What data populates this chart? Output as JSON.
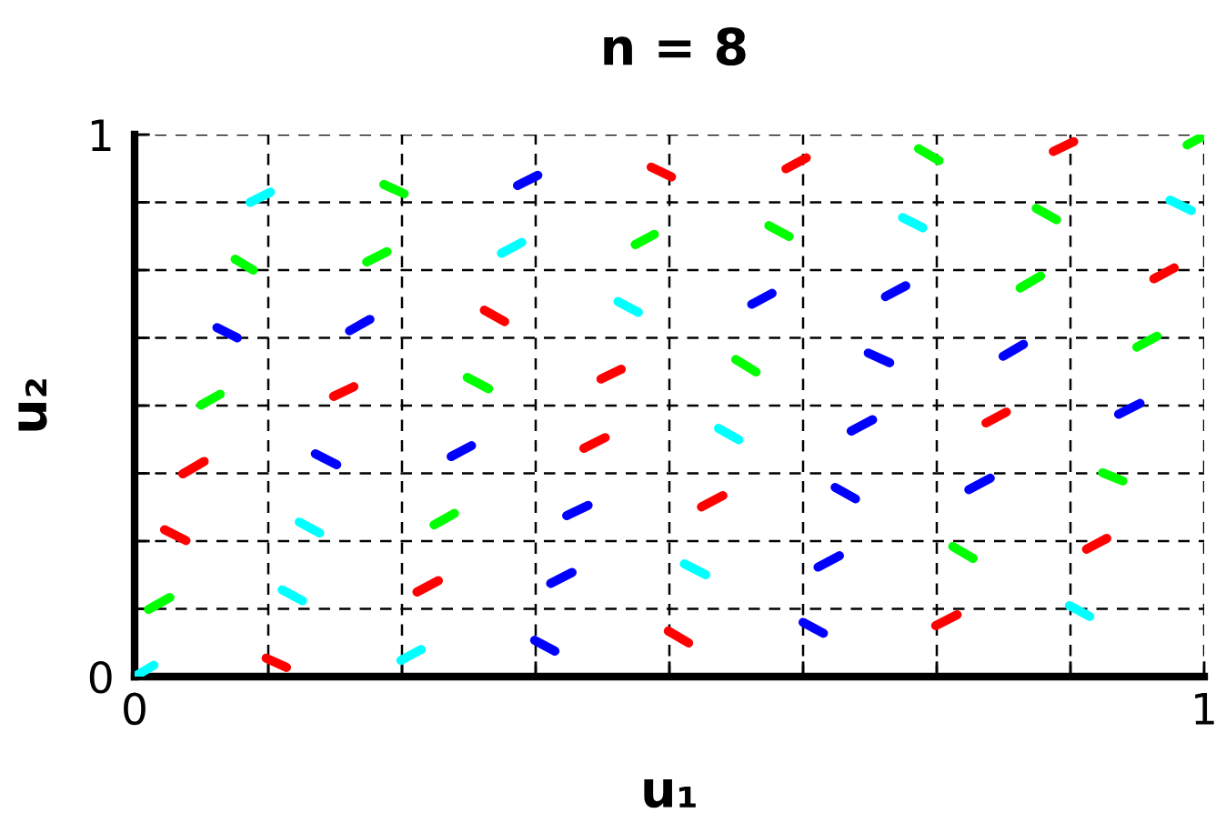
{
  "chart_data": {
    "type": "line",
    "title": "n = 8",
    "xlabel": "u₁",
    "ylabel": "u₂",
    "xlim": [
      0,
      1
    ],
    "ylim": [
      0,
      1
    ],
    "xticks": [
      0,
      {
        "value": 0.125,
        "label": null
      },
      {
        "value": 0.25,
        "label": null
      },
      {
        "value": 0.375,
        "label": null
      },
      {
        "value": 0.5,
        "label": null
      },
      {
        "value": 0.625,
        "label": null
      },
      {
        "value": 0.75,
        "label": null
      },
      {
        "value": 0.875,
        "label": null
      },
      1
    ],
    "yticks": [
      0,
      {
        "value": 0.125,
        "label": null
      },
      {
        "value": 0.25,
        "label": null
      },
      {
        "value": 0.375,
        "label": null
      },
      {
        "value": 0.5,
        "label": null
      },
      {
        "value": 0.625,
        "label": null
      },
      {
        "value": 0.75,
        "label": null
      },
      {
        "value": 0.875,
        "label": null
      },
      1
    ],
    "grid": true,
    "series": [
      {
        "color": "#ff0000",
        "x": [
          0.483,
          0.502,
          null,
          0.609,
          0.628,
          null,
          0.859,
          0.878,
          null,
          0.327,
          0.346,
          null,
          0.953,
          0.972,
          null,
          0.186,
          0.205,
          null,
          0.436,
          0.455,
          null,
          0.045,
          0.065,
          null,
          0.42,
          0.44,
          null,
          0.796,
          0.815,
          null,
          0.028,
          0.048,
          null,
          0.53,
          0.55,
          null,
          0.264,
          0.284,
          null,
          0.89,
          0.909,
          null,
          0.123,
          0.142,
          null,
          0.499,
          0.518,
          null,
          0.749,
          0.769
        ],
        "values": [
          0.94,
          0.922,
          null,
          0.937,
          0.957,
          null,
          0.969,
          0.987,
          null,
          0.676,
          0.655,
          null,
          0.734,
          0.754,
          null,
          0.517,
          0.535,
          null,
          0.549,
          0.567,
          null,
          0.374,
          0.397,
          null,
          0.421,
          0.441,
          null,
          0.468,
          0.488,
          null,
          0.271,
          0.251,
          null,
          0.313,
          0.334,
          null,
          0.156,
          0.177,
          null,
          0.235,
          0.255,
          null,
          0.034,
          0.017,
          null,
          0.084,
          0.062,
          null,
          0.094,
          0.114
        ]
      },
      {
        "color": "#00ff00",
        "x": [
          0.233,
          0.252,
          null,
          0.733,
          0.752,
          null,
          0.984,
          1.0,
          null,
          0.094,
          0.111,
          null,
          0.217,
          0.236,
          null,
          0.468,
          0.486,
          null,
          0.593,
          0.612,
          null,
          0.843,
          0.862,
          null,
          0.828,
          0.847,
          null,
          0.062,
          0.08,
          null,
          0.311,
          0.331,
          null,
          0.562,
          0.581,
          null,
          0.937,
          0.956,
          null,
          0.28,
          0.299,
          null,
          0.905,
          0.924,
          null,
          0.013,
          0.033,
          null,
          0.765,
          0.784
        ],
        "values": [
          0.908,
          0.891,
          null,
          0.974,
          0.952,
          null,
          0.981,
          0.998,
          null,
          0.77,
          0.75,
          null,
          0.765,
          0.784,
          null,
          0.797,
          0.816,
          null,
          0.832,
          0.812,
          null,
          0.864,
          0.843,
          null,
          0.717,
          0.739,
          null,
          0.501,
          0.521,
          null,
          0.552,
          0.531,
          null,
          0.585,
          0.562,
          null,
          0.608,
          0.628,
          null,
          0.28,
          0.301,
          null,
          0.376,
          0.361,
          null,
          0.124,
          0.146,
          null,
          0.24,
          0.218
        ]
      },
      {
        "color": "#0000ff",
        "x": [
          0.358,
          0.377,
          null,
          0.077,
          0.096,
          null,
          0.201,
          0.22,
          null,
          0.577,
          0.596,
          null,
          0.702,
          0.721,
          null,
          0.686,
          0.706,
          null,
          0.812,
          0.831,
          null,
          0.169,
          0.189,
          null,
          0.296,
          0.315,
          null,
          0.67,
          0.69,
          null,
          0.92,
          0.94,
          null,
          0.404,
          0.424,
          null,
          0.655,
          0.674,
          null,
          0.78,
          0.8,
          null,
          0.389,
          0.409,
          null,
          0.639,
          0.659,
          null,
          0.374,
          0.393,
          null,
          0.625,
          0.644
        ],
        "values": [
          0.906,
          0.925,
          null,
          0.644,
          0.625,
          null,
          0.638,
          0.659,
          null,
          0.687,
          0.707,
          null,
          0.701,
          0.721,
          null,
          0.597,
          0.579,
          null,
          0.591,
          0.613,
          null,
          0.411,
          0.391,
          null,
          0.406,
          0.426,
          null,
          0.453,
          0.474,
          null,
          0.484,
          0.504,
          null,
          0.297,
          0.316,
          null,
          0.349,
          0.328,
          null,
          0.345,
          0.366,
          null,
          0.172,
          0.192,
          null,
          0.202,
          0.223,
          null,
          0.067,
          0.047,
          null,
          0.1,
          0.08
        ]
      },
      {
        "color": "#00ffff",
        "x": [
          0.108,
          0.127,
          null,
          0.343,
          0.362,
          null,
          0.718,
          0.737,
          null,
          0.968,
          0.988,
          null,
          0.452,
          0.471,
          null,
          0.546,
          0.565,
          null,
          0.154,
          0.173,
          null,
          0.138,
          0.157,
          null,
          0.514,
          0.534,
          null,
          0.0,
          0.018,
          null,
          0.249,
          0.268,
          null,
          0.874,
          0.893
        ],
        "values": [
          0.875,
          0.894,
          null,
          0.781,
          0.801,
          null,
          0.847,
          0.828,
          null,
          0.879,
          0.86,
          null,
          0.692,
          0.672,
          null,
          0.458,
          0.437,
          null,
          0.285,
          0.265,
          null,
          0.16,
          0.14,
          null,
          0.208,
          0.188,
          null,
          0.0,
          0.021,
          null,
          0.03,
          0.05,
          null,
          0.131,
          0.111
        ]
      }
    ]
  }
}
